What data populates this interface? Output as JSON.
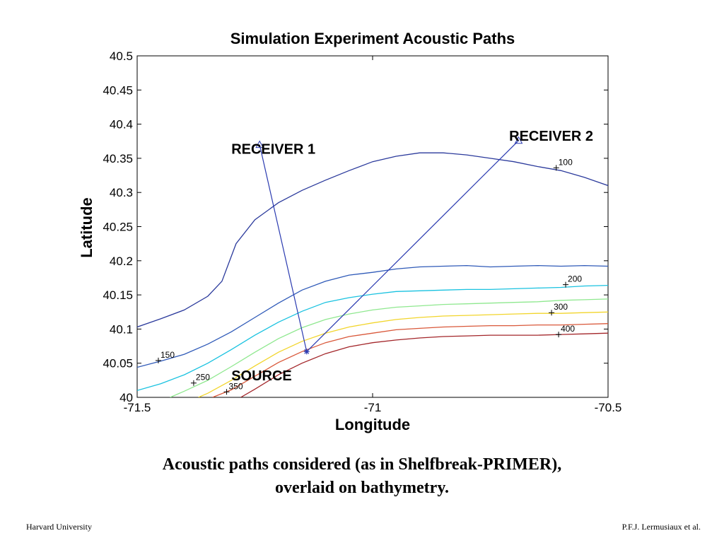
{
  "chart_data": {
    "type": "line",
    "title": "Simulation Experiment Acoustic Paths",
    "xlabel": "Longitude",
    "ylabel": "Latitude",
    "xlim": [
      -71.5,
      -70.5
    ],
    "ylim": [
      40,
      40.5
    ],
    "xticks": [
      "-71.5",
      "-71",
      "-70.5"
    ],
    "yticks": [
      "40",
      "40.05",
      "40.1",
      "40.15",
      "40.2",
      "40.25",
      "40.3",
      "40.35",
      "40.4",
      "40.45",
      "40.5"
    ],
    "grid": false,
    "contours": [
      {
        "level": "100",
        "color": "#2b3a9c",
        "points": [
          [
            -71.5,
            40.103
          ],
          [
            -71.45,
            40.115
          ],
          [
            -71.4,
            40.128
          ],
          [
            -71.35,
            40.148
          ],
          [
            -71.32,
            40.17
          ],
          [
            -71.29,
            40.225
          ],
          [
            -71.25,
            40.26
          ],
          [
            -71.2,
            40.285
          ],
          [
            -71.15,
            40.303
          ],
          [
            -71.1,
            40.318
          ],
          [
            -71.05,
            40.332
          ],
          [
            -71,
            40.345
          ],
          [
            -70.95,
            40.353
          ],
          [
            -70.9,
            40.358
          ],
          [
            -70.85,
            40.358
          ],
          [
            -70.8,
            40.355
          ],
          [
            -70.75,
            40.35
          ],
          [
            -70.7,
            40.345
          ],
          [
            -70.65,
            40.338
          ],
          [
            -70.6,
            40.332
          ],
          [
            -70.55,
            40.322
          ],
          [
            -70.5,
            40.31
          ]
        ],
        "label_at": [
          -70.61,
          40.336
        ]
      },
      {
        "level": "150",
        "color": "#2f5ab8",
        "points": [
          [
            -71.5,
            40.044
          ],
          [
            -71.45,
            40.053
          ],
          [
            -71.4,
            40.063
          ],
          [
            -71.35,
            40.078
          ],
          [
            -71.3,
            40.096
          ],
          [
            -71.25,
            40.117
          ],
          [
            -71.2,
            40.138
          ],
          [
            -71.15,
            40.157
          ],
          [
            -71.1,
            40.17
          ],
          [
            -71.05,
            40.179
          ],
          [
            -71,
            40.183
          ],
          [
            -70.95,
            40.188
          ],
          [
            -70.9,
            40.191
          ],
          [
            -70.85,
            40.192
          ],
          [
            -70.8,
            40.193
          ],
          [
            -70.75,
            40.191
          ],
          [
            -70.7,
            40.192
          ],
          [
            -70.65,
            40.193
          ],
          [
            -70.6,
            40.192
          ],
          [
            -70.55,
            40.193
          ],
          [
            -70.5,
            40.192
          ]
        ],
        "label_at": [
          -71.455,
          40.054
        ]
      },
      {
        "level": "200",
        "color": "#19c2e0",
        "points": [
          [
            -71.5,
            40.01
          ],
          [
            -71.45,
            40.02
          ],
          [
            -71.4,
            40.033
          ],
          [
            -71.35,
            40.05
          ],
          [
            -71.3,
            40.07
          ],
          [
            -71.25,
            40.091
          ],
          [
            -71.2,
            40.11
          ],
          [
            -71.15,
            40.126
          ],
          [
            -71.1,
            40.139
          ],
          [
            -71.05,
            40.146
          ],
          [
            -71,
            40.151
          ],
          [
            -70.95,
            40.155
          ],
          [
            -70.9,
            40.156
          ],
          [
            -70.85,
            40.157
          ],
          [
            -70.8,
            40.158
          ],
          [
            -70.75,
            40.158
          ],
          [
            -70.7,
            40.159
          ],
          [
            -70.65,
            40.16
          ],
          [
            -70.6,
            40.161
          ],
          [
            -70.55,
            40.163
          ],
          [
            -70.5,
            40.164
          ]
        ],
        "label_at": [
          -70.59,
          40.165
        ]
      },
      {
        "level": "250",
        "color": "#8fe88f",
        "points": [
          [
            -71.43,
            40
          ],
          [
            -71.4,
            40.009
          ],
          [
            -71.35,
            40.025
          ],
          [
            -71.3,
            40.045
          ],
          [
            -71.25,
            40.066
          ],
          [
            -71.2,
            40.086
          ],
          [
            -71.15,
            40.102
          ],
          [
            -71.1,
            40.114
          ],
          [
            -71.05,
            40.122
          ],
          [
            -71,
            40.128
          ],
          [
            -70.95,
            40.132
          ],
          [
            -70.9,
            40.134
          ],
          [
            -70.85,
            40.136
          ],
          [
            -70.8,
            40.137
          ],
          [
            -70.75,
            40.138
          ],
          [
            -70.7,
            40.139
          ],
          [
            -70.65,
            40.14
          ],
          [
            -70.6,
            40.142
          ],
          [
            -70.55,
            40.143
          ],
          [
            -70.5,
            40.144
          ]
        ],
        "label_at": [
          -71.38,
          40.021
        ]
      },
      {
        "level": "300",
        "color": "#f2d52c",
        "points": [
          [
            -71.37,
            40
          ],
          [
            -71.35,
            40.006
          ],
          [
            -71.3,
            40.025
          ],
          [
            -71.25,
            40.046
          ],
          [
            -71.2,
            40.066
          ],
          [
            -71.15,
            40.082
          ],
          [
            -71.1,
            40.094
          ],
          [
            -71.05,
            40.103
          ],
          [
            -71,
            40.109
          ],
          [
            -70.95,
            40.114
          ],
          [
            -70.9,
            40.117
          ],
          [
            -70.85,
            40.119
          ],
          [
            -70.8,
            40.12
          ],
          [
            -70.75,
            40.121
          ],
          [
            -70.7,
            40.122
          ],
          [
            -70.65,
            40.123
          ],
          [
            -70.6,
            40.123
          ],
          [
            -70.55,
            40.124
          ],
          [
            -70.5,
            40.125
          ]
        ],
        "label_at": [
          -70.62,
          40.124
        ]
      },
      {
        "level": "350",
        "color": "#d9583a",
        "points": [
          [
            -71.34,
            40
          ],
          [
            -71.3,
            40.011
          ],
          [
            -71.25,
            40.031
          ],
          [
            -71.2,
            40.051
          ],
          [
            -71.15,
            40.067
          ],
          [
            -71.1,
            40.08
          ],
          [
            -71.05,
            40.089
          ],
          [
            -71,
            40.094
          ],
          [
            -70.95,
            40.099
          ],
          [
            -70.9,
            40.101
          ],
          [
            -70.85,
            40.103
          ],
          [
            -70.8,
            40.104
          ],
          [
            -70.75,
            40.105
          ],
          [
            -70.7,
            40.105
          ],
          [
            -70.65,
            40.106
          ],
          [
            -70.6,
            40.106
          ],
          [
            -70.55,
            40.107
          ],
          [
            -70.5,
            40.108
          ]
        ],
        "label_at": [
          -71.31,
          40.008
        ]
      },
      {
        "level": "400",
        "color": "#a3262a",
        "points": [
          [
            -71.28,
            40
          ],
          [
            -71.25,
            40.012
          ],
          [
            -71.2,
            40.033
          ],
          [
            -71.15,
            40.05
          ],
          [
            -71.1,
            40.064
          ],
          [
            -71.05,
            40.074
          ],
          [
            -71,
            40.08
          ],
          [
            -70.95,
            40.084
          ],
          [
            -70.9,
            40.087
          ],
          [
            -70.85,
            40.089
          ],
          [
            -70.8,
            40.09
          ],
          [
            -70.75,
            40.091
          ],
          [
            -70.7,
            40.091
          ],
          [
            -70.65,
            40.091
          ],
          [
            -70.6,
            40.092
          ],
          [
            -70.55,
            40.093
          ],
          [
            -70.5,
            40.094
          ]
        ],
        "label_at": [
          -70.605,
          40.092
        ]
      }
    ],
    "paths": [
      {
        "name": "path-1",
        "color": "#2a3ab0",
        "from": [
          -71.14,
          40.067
        ],
        "to": [
          -71.24,
          40.37
        ]
      },
      {
        "name": "path-2",
        "color": "#2a3ab0",
        "from": [
          -71.14,
          40.067
        ],
        "to": [
          -70.69,
          40.376
        ]
      }
    ],
    "annotations": [
      {
        "name": "receiver-1-label",
        "text": "RECEIVER 1",
        "at": [
          -71.3,
          40.365
        ]
      },
      {
        "name": "receiver-2-label",
        "text": "RECEIVER 2",
        "at": [
          -70.71,
          40.384
        ]
      },
      {
        "name": "source-label",
        "text": "SOURCE",
        "at": [
          -71.3,
          40.033
        ]
      }
    ],
    "colors": {
      "path": "#2a3ab0",
      "axes": "#000000"
    }
  },
  "caption": {
    "line1": "Acoustic paths considered (as in Shelfbreak-PRIMER),",
    "line2": "overlaid on bathymetry."
  },
  "footer": {
    "left": "Harvard University",
    "right": "P.F.J. Lermusiaux et al."
  }
}
